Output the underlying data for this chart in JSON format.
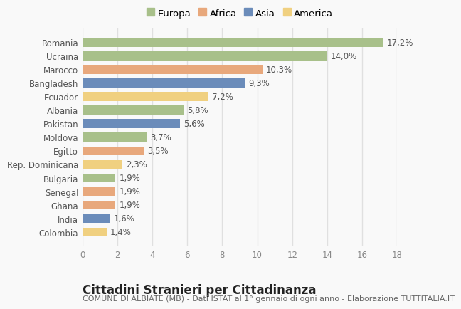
{
  "countries": [
    "Romania",
    "Ucraina",
    "Marocco",
    "Bangladesh",
    "Ecuador",
    "Albania",
    "Pakistan",
    "Moldova",
    "Egitto",
    "Rep. Dominicana",
    "Bulgaria",
    "Senegal",
    "Ghana",
    "India",
    "Colombia"
  ],
  "values": [
    17.2,
    14.0,
    10.3,
    9.3,
    7.2,
    5.8,
    5.6,
    3.7,
    3.5,
    2.3,
    1.9,
    1.9,
    1.9,
    1.6,
    1.4
  ],
  "labels": [
    "17,2%",
    "14,0%",
    "10,3%",
    "9,3%",
    "7,2%",
    "5,8%",
    "5,6%",
    "3,7%",
    "3,5%",
    "2,3%",
    "1,9%",
    "1,9%",
    "1,9%",
    "1,6%",
    "1,4%"
  ],
  "continents": [
    "Europa",
    "Europa",
    "Africa",
    "Asia",
    "America",
    "Europa",
    "Asia",
    "Europa",
    "Africa",
    "America",
    "Europa",
    "Africa",
    "Africa",
    "Asia",
    "America"
  ],
  "continent_colors": {
    "Europa": "#a8c08a",
    "Africa": "#e8a87c",
    "Asia": "#6b8cba",
    "America": "#f0d080"
  },
  "legend_order": [
    "Europa",
    "Africa",
    "Asia",
    "America"
  ],
  "xlim": [
    0,
    18
  ],
  "xticks": [
    0,
    2,
    4,
    6,
    8,
    10,
    12,
    14,
    16,
    18
  ],
  "title": "Cittadini Stranieri per Cittadinanza",
  "subtitle": "COMUNE DI ALBIATE (MB) - Dati ISTAT al 1° gennaio di ogni anno - Elaborazione TUTTITALIA.IT",
  "bg_color": "#f9f9f9",
  "grid_color": "#e0e0e0",
  "bar_height": 0.65,
  "title_fontsize": 12,
  "subtitle_fontsize": 8,
  "label_fontsize": 8.5,
  "tick_fontsize": 8.5,
  "legend_fontsize": 9.5
}
